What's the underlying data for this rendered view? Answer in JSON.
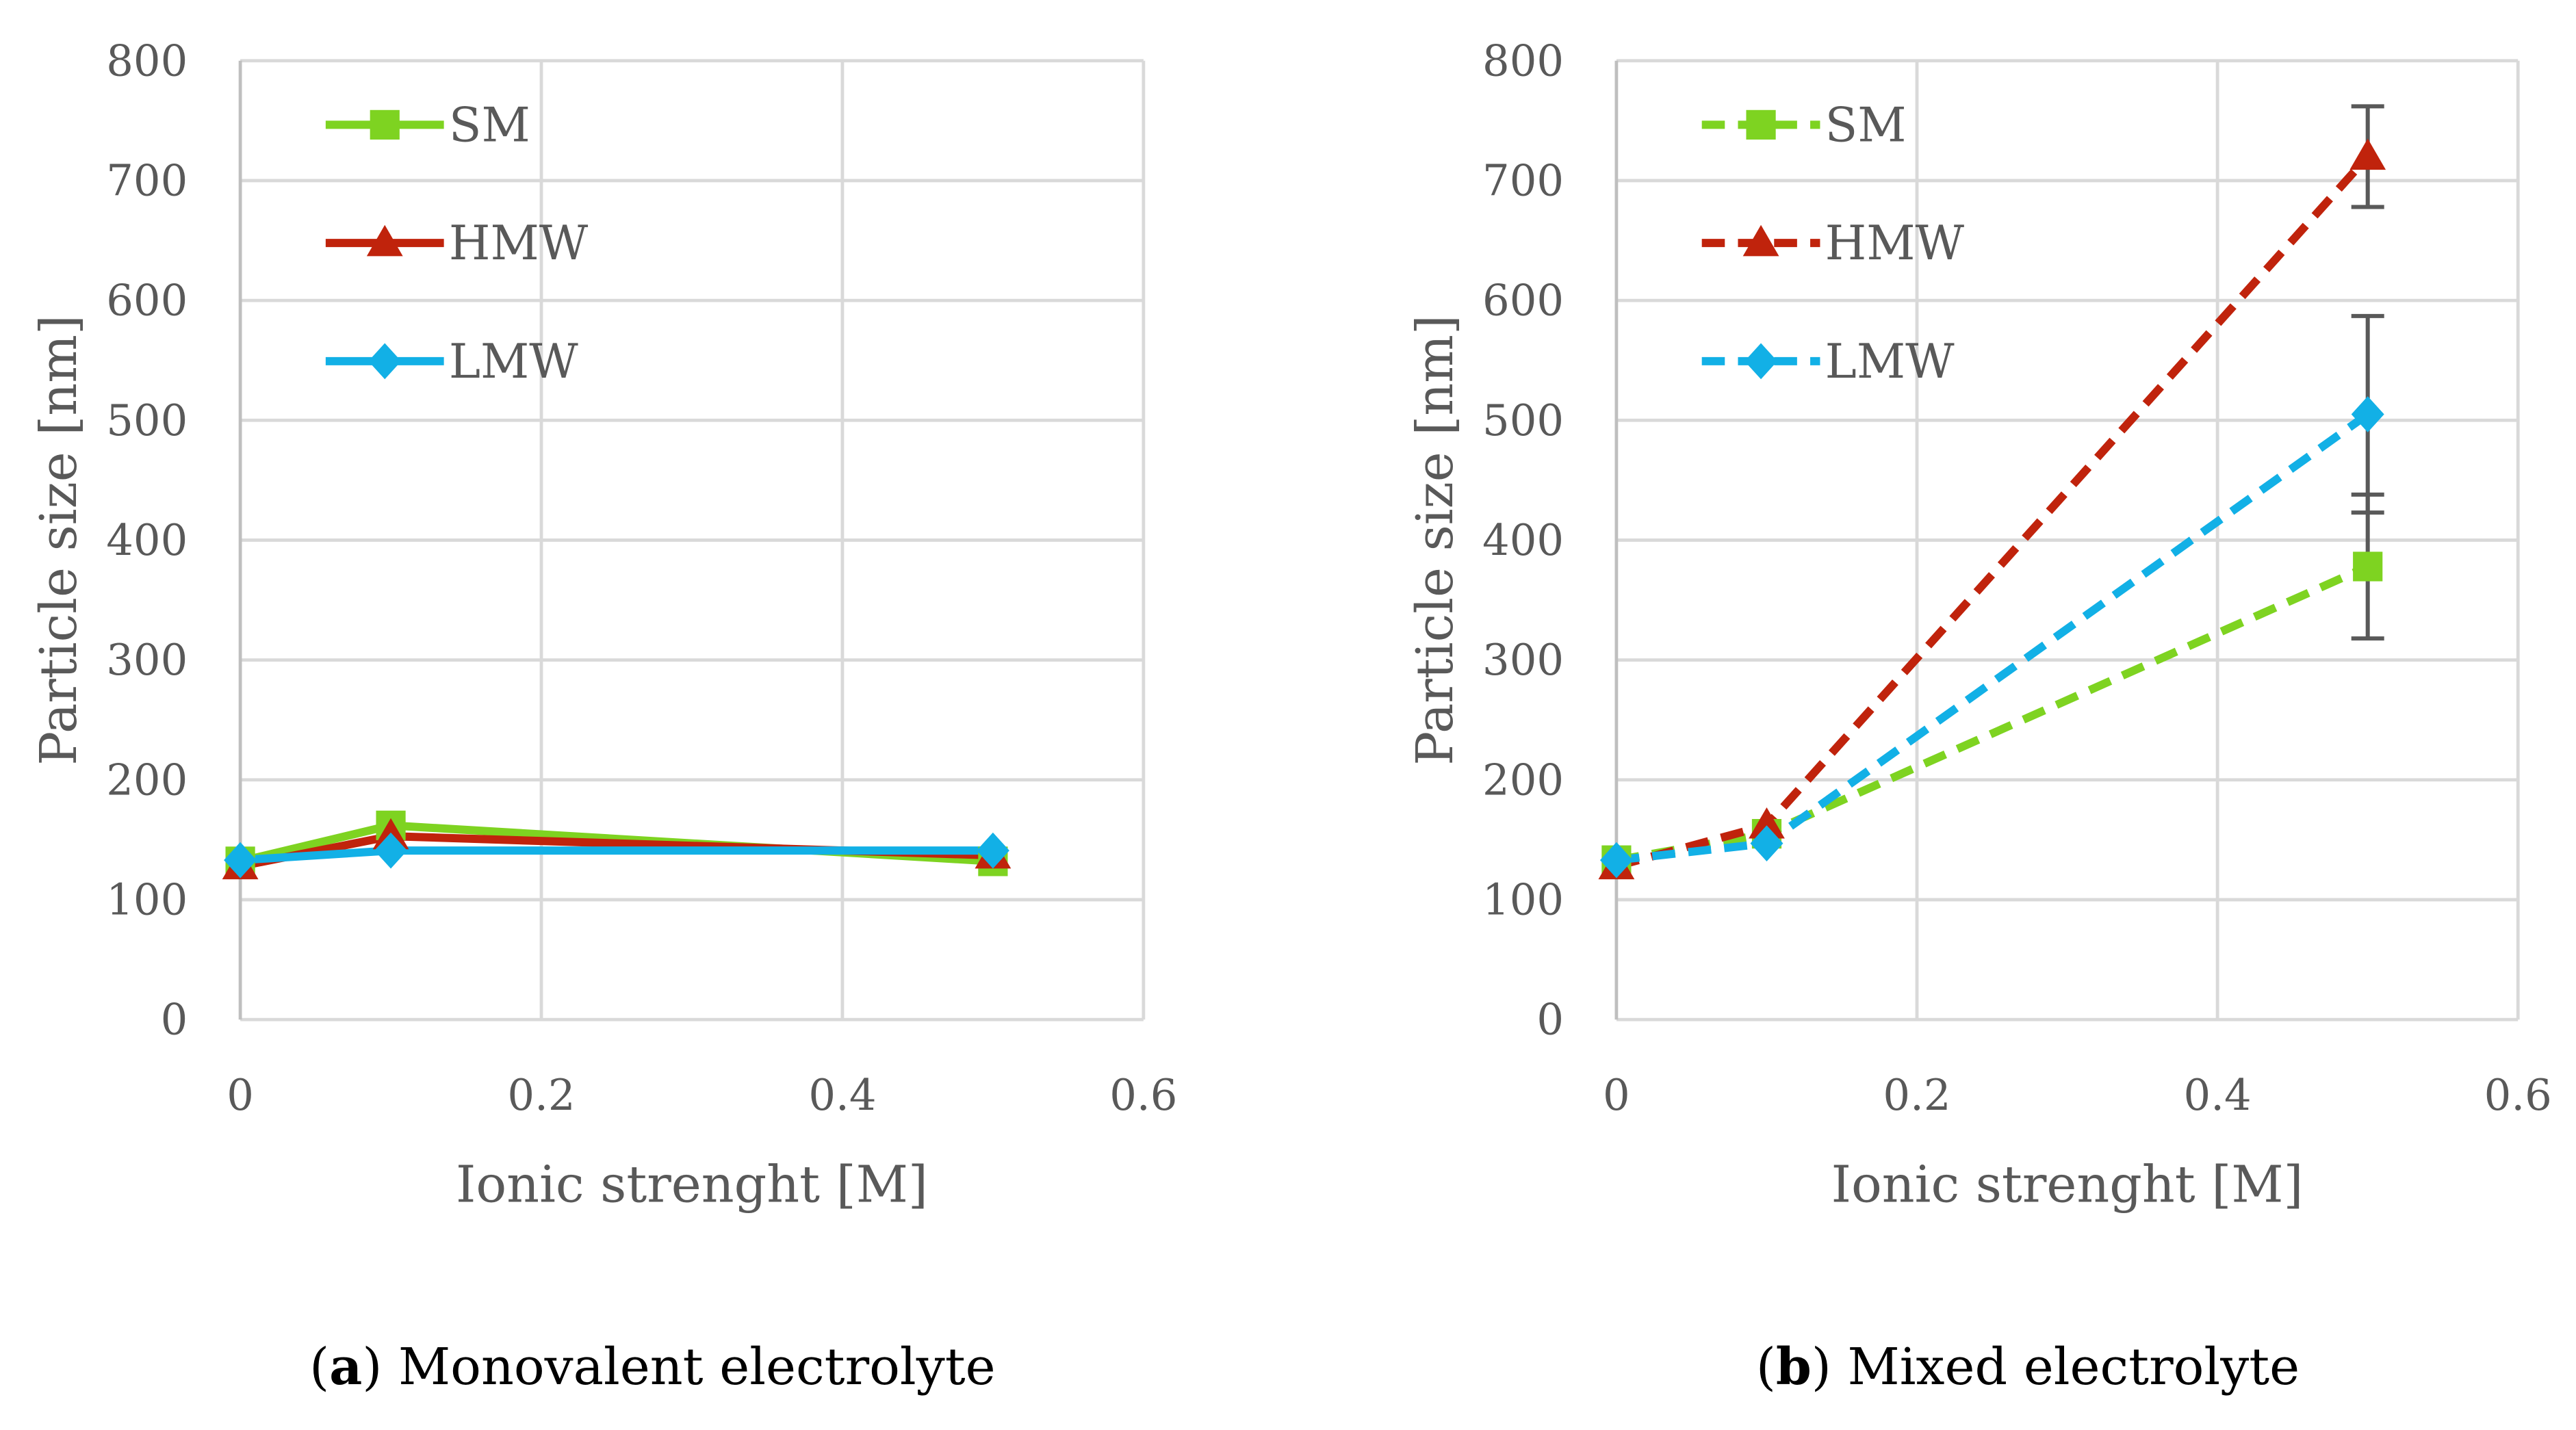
{
  "chart_data": [
    {
      "type": "line",
      "caption_letter": "a",
      "caption_text": ") Monovalent electrolyte",
      "caption_open": "(",
      "xlabel": "Ionic strenght [M]",
      "ylabel": "Particle size [nm]",
      "xlim": [
        0,
        0.6
      ],
      "ylim": [
        0,
        800
      ],
      "xticks": [
        0,
        0.2,
        0.4,
        0.6
      ],
      "xtick_labels": [
        "0",
        "0.2",
        "0.4",
        "0.6"
      ],
      "yticks": [
        0,
        100,
        200,
        300,
        400,
        500,
        600,
        700,
        800
      ],
      "ytick_labels": [
        "0",
        "100",
        "200",
        "300",
        "400",
        "500",
        "600",
        "700",
        "800"
      ],
      "grid": true,
      "legend_position": "top-left",
      "line_style": "solid",
      "x": [
        0,
        0.1,
        0.5
      ],
      "series": [
        {
          "name": "SM",
          "color": "#7ed321",
          "marker": "square",
          "values": [
            132,
            162,
            132
          ]
        },
        {
          "name": "HMW",
          "color": "#c0230c",
          "marker": "triangle",
          "values": [
            128,
            153,
            137
          ]
        },
        {
          "name": "LMW",
          "color": "#12b0e6",
          "marker": "diamond",
          "values": [
            133,
            141,
            141
          ]
        }
      ]
    },
    {
      "type": "line",
      "caption_letter": "b",
      "caption_text": ") Mixed electrolyte",
      "caption_open": "(",
      "xlabel": "Ionic strenght [M]",
      "ylabel": "Particle size [nm]",
      "xlim": [
        0,
        0.6
      ],
      "ylim": [
        0,
        800
      ],
      "xticks": [
        0,
        0.2,
        0.4,
        0.6
      ],
      "xtick_labels": [
        "0",
        "0.2",
        "0.4",
        "0.6"
      ],
      "yticks": [
        0,
        100,
        200,
        300,
        400,
        500,
        600,
        700,
        800
      ],
      "ytick_labels": [
        "0",
        "100",
        "200",
        "300",
        "400",
        "500",
        "600",
        "700",
        "800"
      ],
      "grid": true,
      "legend_position": "top-left",
      "line_style": "dashed",
      "x": [
        0,
        0.1,
        0.5
      ],
      "series": [
        {
          "name": "SM",
          "color": "#7ed321",
          "marker": "square",
          "values": [
            133,
            155,
            378
          ],
          "error": [
            0,
            0,
            60
          ]
        },
        {
          "name": "HMW",
          "color": "#c0230c",
          "marker": "triangle",
          "values": [
            128,
            162,
            720
          ],
          "error": [
            0,
            0,
            42
          ]
        },
        {
          "name": "LMW",
          "color": "#12b0e6",
          "marker": "diamond",
          "values": [
            133,
            147,
            505
          ],
          "error": [
            0,
            0,
            82
          ]
        }
      ]
    }
  ]
}
